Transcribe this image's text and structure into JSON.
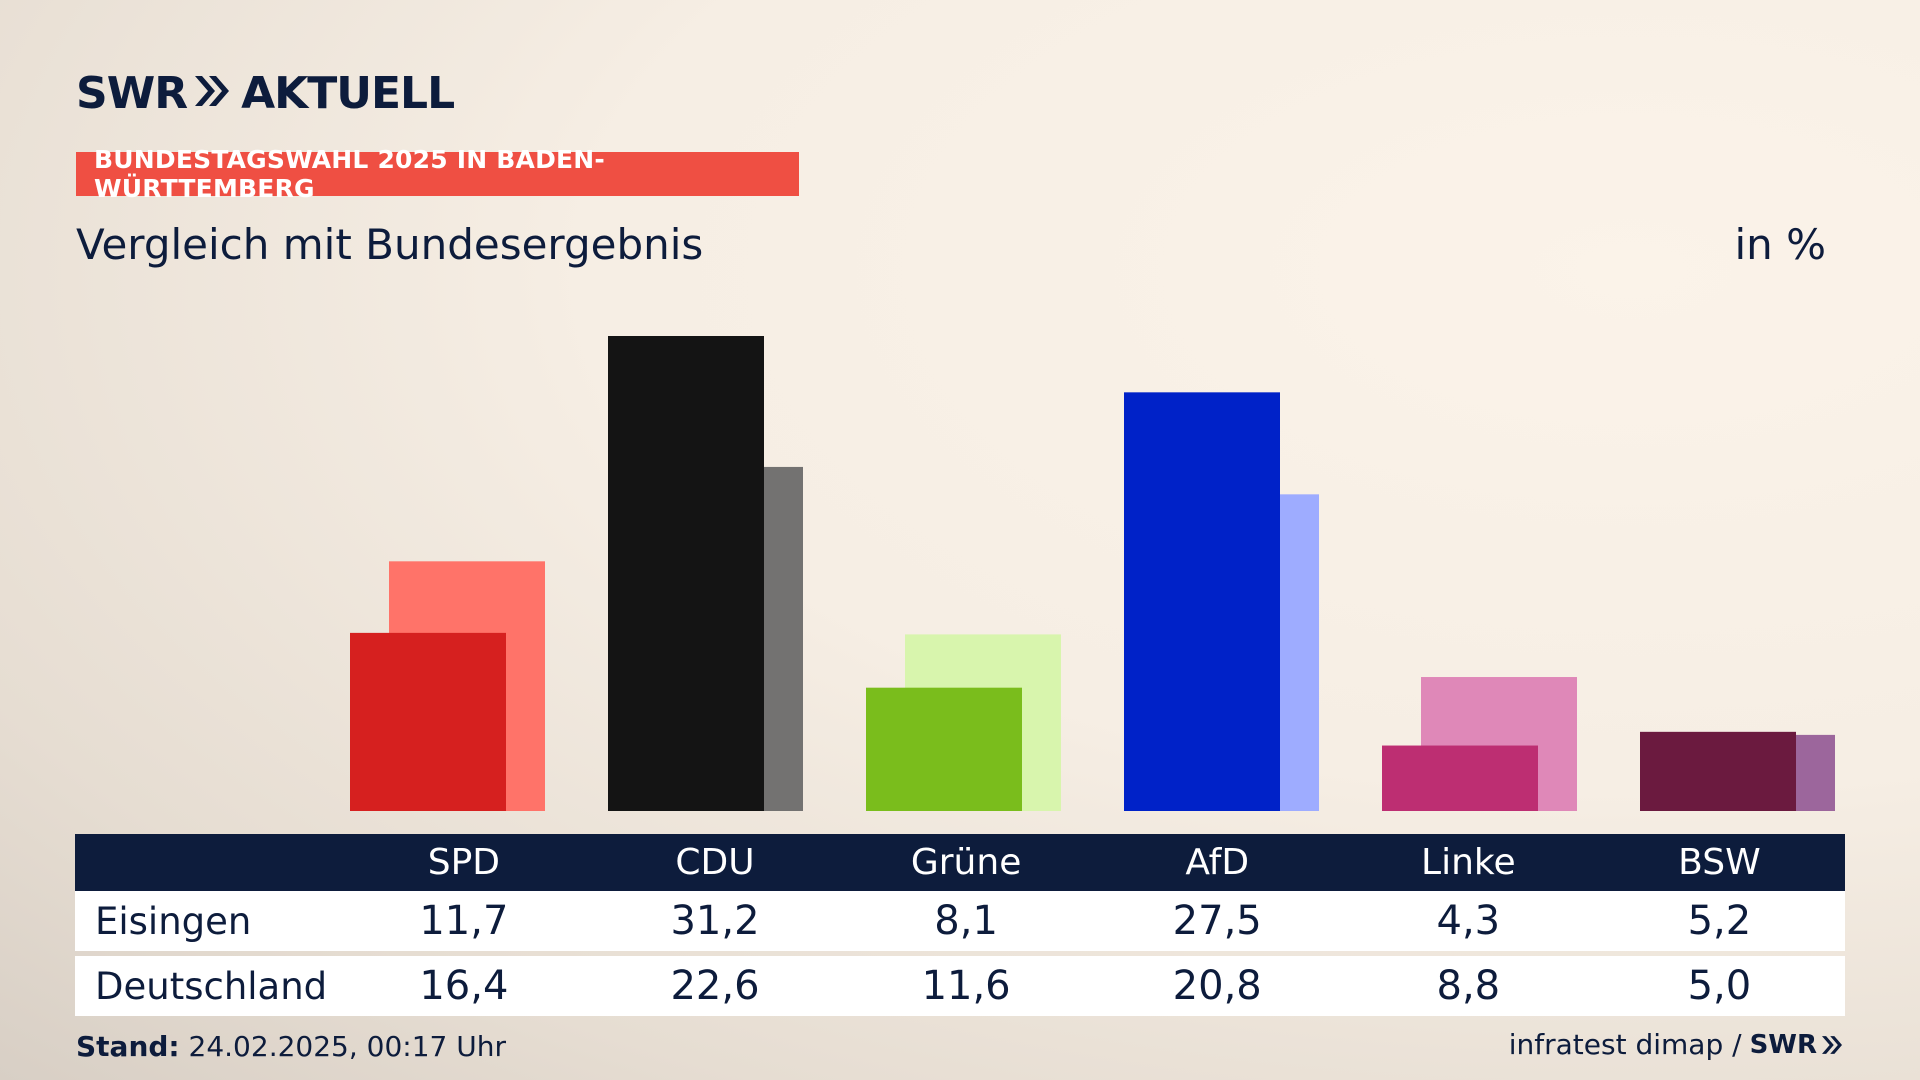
{
  "brand": {
    "logo_left": "SWR",
    "logo_right": "AKTUELL",
    "source": "infratest dimap /",
    "source_logo": "SWR"
  },
  "tag": "BUNDESTAGSWAHL 2025 IN BADEN-WÜRTTEMBERG",
  "subtitle": "Vergleich mit Bundesergebnis",
  "unit": "in %",
  "table": {
    "row_labels": [
      "Eisingen",
      "Deutschland"
    ]
  },
  "footer": {
    "stand_label": "Stand:",
    "stand_value": "24.02.2025, 00:17 Uhr"
  },
  "chart_data": {
    "type": "bar",
    "categories": [
      "SPD",
      "CDU",
      "Grüne",
      "AfD",
      "Linke",
      "BSW"
    ],
    "series": [
      {
        "name": "Eisingen",
        "values": [
          11.7,
          31.2,
          8.1,
          27.5,
          4.3,
          5.2
        ]
      },
      {
        "name": "Deutschland",
        "values": [
          16.4,
          22.6,
          11.6,
          20.8,
          8.8,
          5.0
        ]
      }
    ],
    "value_labels": {
      "Eisingen": [
        "11,7",
        "31,2",
        "8,1",
        "27,5",
        "4,3",
        "5,2"
      ],
      "Deutschland": [
        "16,4",
        "22,6",
        "11,6",
        "20,8",
        "8,8",
        "5,0"
      ]
    },
    "colors": {
      "primary": [
        "#d6201f",
        "#141414",
        "#7abd1c",
        "#0022c8",
        "#bd2e72",
        "#6b1a3f"
      ],
      "secondary": [
        "#ff7369",
        "#737271",
        "#d8f5ad",
        "#9eacff",
        "#df88b8",
        "#9c669c"
      ]
    },
    "ylim": [
      0,
      31.2
    ],
    "grid": false
  }
}
